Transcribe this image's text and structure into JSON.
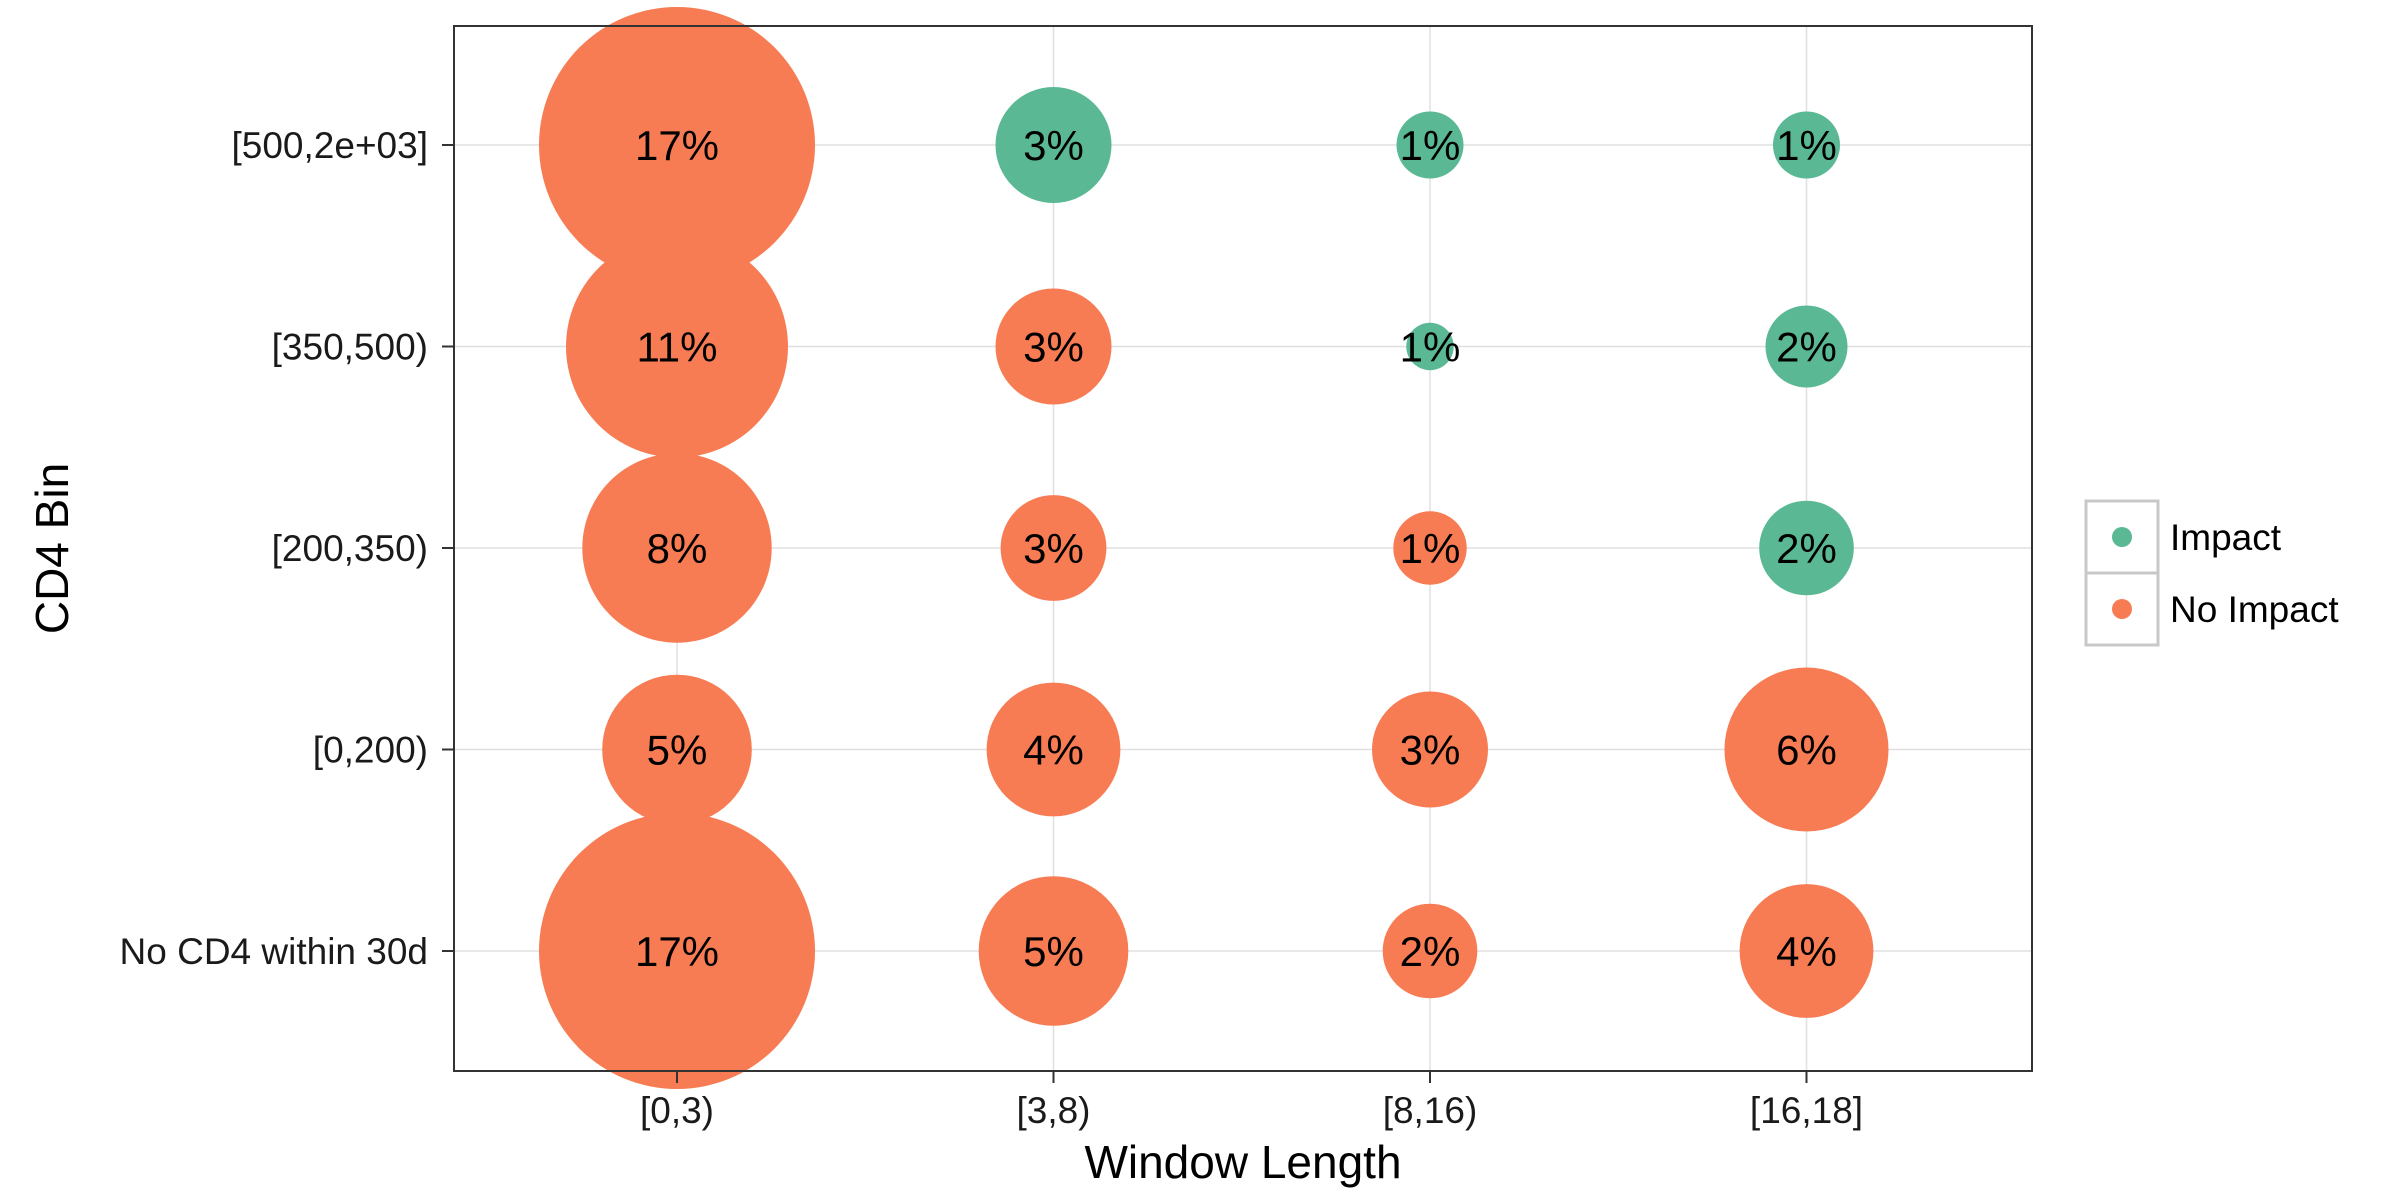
{
  "chart_data": {
    "type": "scatter",
    "subtype": "bubble",
    "xlabel": "Window Length",
    "ylabel": "CD4 Bin",
    "x_categories": [
      "[0,3)",
      "[3,8)",
      "[8,16)",
      "[16,18]"
    ],
    "y_categories": [
      "No CD4 within 30d",
      "[0,200)",
      "[200,350)",
      "[350,500)",
      "[500,2e+03]"
    ],
    "grid": true,
    "legend_position": "right",
    "series": [
      {
        "name": "Impact",
        "color": "#5AB994"
      },
      {
        "name": "No Impact",
        "color": "#F87C53"
      }
    ],
    "points": [
      {
        "x": "[0,3)",
        "y": "[500,2e+03]",
        "value": 17,
        "label": "17%",
        "group": "No Impact"
      },
      {
        "x": "[3,8)",
        "y": "[500,2e+03]",
        "value": 3,
        "label": "3%",
        "group": "Impact"
      },
      {
        "x": "[8,16)",
        "y": "[500,2e+03]",
        "value": 1,
        "label": "1%",
        "group": "Impact"
      },
      {
        "x": "[16,18]",
        "y": "[500,2e+03]",
        "value": 1,
        "label": "1%",
        "group": "Impact"
      },
      {
        "x": "[0,3)",
        "y": "[350,500)",
        "value": 11,
        "label": "11%",
        "group": "No Impact"
      },
      {
        "x": "[3,8)",
        "y": "[350,500)",
        "value": 3,
        "label": "3%",
        "group": "No Impact"
      },
      {
        "x": "[8,16)",
        "y": "[350,500)",
        "value": 0.5,
        "label": "1%",
        "group": "Impact"
      },
      {
        "x": "[16,18]",
        "y": "[350,500)",
        "value": 1.5,
        "label": "2%",
        "group": "Impact"
      },
      {
        "x": "[0,3)",
        "y": "[200,350)",
        "value": 8,
        "label": "8%",
        "group": "No Impact"
      },
      {
        "x": "[3,8)",
        "y": "[200,350)",
        "value": 2.5,
        "label": "3%",
        "group": "No Impact"
      },
      {
        "x": "[8,16)",
        "y": "[200,350)",
        "value": 1.2,
        "label": "1%",
        "group": "No Impact"
      },
      {
        "x": "[16,18]",
        "y": "[200,350)",
        "value": 2,
        "label": "2%",
        "group": "Impact"
      },
      {
        "x": "[0,3)",
        "y": "[0,200)",
        "value": 5,
        "label": "5%",
        "group": "No Impact"
      },
      {
        "x": "[3,8)",
        "y": "[0,200)",
        "value": 4,
        "label": "4%",
        "group": "No Impact"
      },
      {
        "x": "[8,16)",
        "y": "[0,200)",
        "value": 3,
        "label": "3%",
        "group": "No Impact"
      },
      {
        "x": "[16,18]",
        "y": "[0,200)",
        "value": 6,
        "label": "6%",
        "group": "No Impact"
      },
      {
        "x": "[0,3)",
        "y": "No CD4 within 30d",
        "value": 17,
        "label": "17%",
        "group": "No Impact"
      },
      {
        "x": "[3,8)",
        "y": "No CD4 within 30d",
        "value": 5,
        "label": "5%",
        "group": "No Impact"
      },
      {
        "x": "[8,16)",
        "y": "No CD4 within 30d",
        "value": 2,
        "label": "2%",
        "group": "No Impact"
      },
      {
        "x": "[16,18]",
        "y": "No CD4 within 30d",
        "value": 4,
        "label": "4%",
        "group": "No Impact"
      }
    ]
  }
}
